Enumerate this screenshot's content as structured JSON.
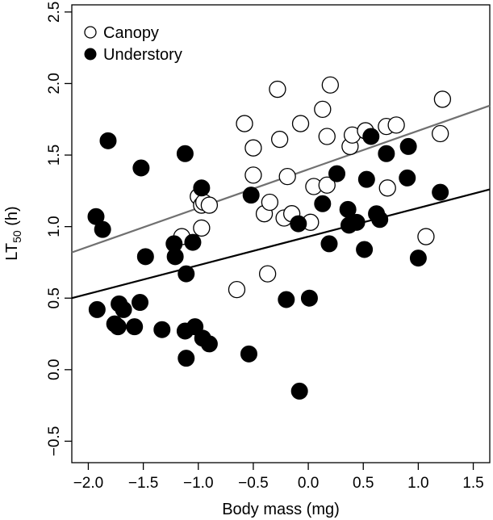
{
  "chart_data": {
    "type": "scatter",
    "title": "",
    "xlabel": "Body mass (mg)",
    "ylabel_main": "LT",
    "ylabel_sub": "50",
    "ylabel_unit": " (h)",
    "xlim": [
      -2.15,
      1.65
    ],
    "ylim": [
      -0.65,
      2.55
    ],
    "xticks": [
      -2.0,
      -1.5,
      -1.0,
      -0.5,
      0.0,
      0.5,
      1.0,
      1.5
    ],
    "xtick_labels": [
      "−2.0",
      "−1.5",
      "−1.0",
      "−0.5",
      "0.0",
      "0.5",
      "1.0",
      "1.5"
    ],
    "yticks": [
      -0.5,
      0.0,
      0.5,
      1.0,
      1.5,
      2.0,
      2.5
    ],
    "ytick_labels": [
      "−0.5",
      "0.0",
      "0.5",
      "1.0",
      "1.5",
      "2.0",
      "2.5"
    ],
    "grid": false,
    "legend_position": "top-left",
    "series": [
      {
        "name": "Canopy",
        "marker": "open-circle",
        "color": "#000000",
        "fit": {
          "intercept": 1.4,
          "slope": 0.27,
          "color": "#707070"
        },
        "points": [
          [
            -1.15,
            0.93
          ],
          [
            -1.0,
            1.21
          ],
          [
            -0.97,
            1.15
          ],
          [
            -0.95,
            1.17
          ],
          [
            -0.9,
            1.15
          ],
          [
            -0.97,
            0.99
          ],
          [
            -0.65,
            0.56
          ],
          [
            -0.58,
            1.72
          ],
          [
            -0.5,
            1.55
          ],
          [
            -0.5,
            1.36
          ],
          [
            -0.4,
            1.09
          ],
          [
            -0.37,
            0.67
          ],
          [
            -0.35,
            1.17
          ],
          [
            -0.28,
            1.96
          ],
          [
            -0.26,
            1.61
          ],
          [
            -0.22,
            1.06
          ],
          [
            -0.19,
            1.35
          ],
          [
            -0.15,
            1.09
          ],
          [
            -0.07,
            1.72
          ],
          [
            0.02,
            1.03
          ],
          [
            0.05,
            1.28
          ],
          [
            0.13,
            1.82
          ],
          [
            0.17,
            1.63
          ],
          [
            0.17,
            1.29
          ],
          [
            0.2,
            1.99
          ],
          [
            0.38,
            1.56
          ],
          [
            0.4,
            1.64
          ],
          [
            0.52,
            1.67
          ],
          [
            0.71,
            1.7
          ],
          [
            0.72,
            1.27
          ],
          [
            0.8,
            1.71
          ],
          [
            1.07,
            0.93
          ],
          [
            1.2,
            1.65
          ],
          [
            1.22,
            1.89
          ]
        ]
      },
      {
        "name": "Understory",
        "marker": "filled-circle",
        "color": "#000000",
        "fit": {
          "intercept": 0.93,
          "slope": 0.2,
          "color": "#000000"
        },
        "points": [
          [
            -1.93,
            1.07
          ],
          [
            -1.92,
            0.42
          ],
          [
            -1.87,
            0.98
          ],
          [
            -1.82,
            1.6
          ],
          [
            -1.76,
            0.32
          ],
          [
            -1.73,
            0.3
          ],
          [
            -1.72,
            0.46
          ],
          [
            -1.68,
            0.42
          ],
          [
            -1.58,
            0.3
          ],
          [
            -1.53,
            0.47
          ],
          [
            -1.52,
            1.41
          ],
          [
            -1.48,
            0.79
          ],
          [
            -1.33,
            0.28
          ],
          [
            -1.22,
            0.88
          ],
          [
            -1.21,
            0.79
          ],
          [
            -1.12,
            0.27
          ],
          [
            -1.12,
            1.51
          ],
          [
            -1.11,
            0.67
          ],
          [
            -1.11,
            0.08
          ],
          [
            -1.05,
            0.89
          ],
          [
            -1.03,
            0.3
          ],
          [
            -0.97,
            1.27
          ],
          [
            -0.96,
            0.22
          ],
          [
            -0.9,
            0.18
          ],
          [
            -0.54,
            0.11
          ],
          [
            -0.52,
            1.22
          ],
          [
            -0.2,
            0.49
          ],
          [
            -0.09,
            1.02
          ],
          [
            -0.08,
            -0.15
          ],
          [
            0.01,
            0.5
          ],
          [
            0.13,
            1.16
          ],
          [
            0.19,
            0.88
          ],
          [
            0.26,
            1.37
          ],
          [
            0.36,
            1.12
          ],
          [
            0.37,
            1.01
          ],
          [
            0.44,
            1.03
          ],
          [
            0.51,
            0.84
          ],
          [
            0.53,
            1.33
          ],
          [
            0.57,
            1.63
          ],
          [
            0.62,
            1.09
          ],
          [
            0.65,
            1.05
          ],
          [
            0.71,
            1.51
          ],
          [
            0.9,
            1.34
          ],
          [
            0.91,
            1.56
          ],
          [
            1.0,
            0.78
          ],
          [
            1.2,
            1.24
          ]
        ]
      }
    ]
  }
}
